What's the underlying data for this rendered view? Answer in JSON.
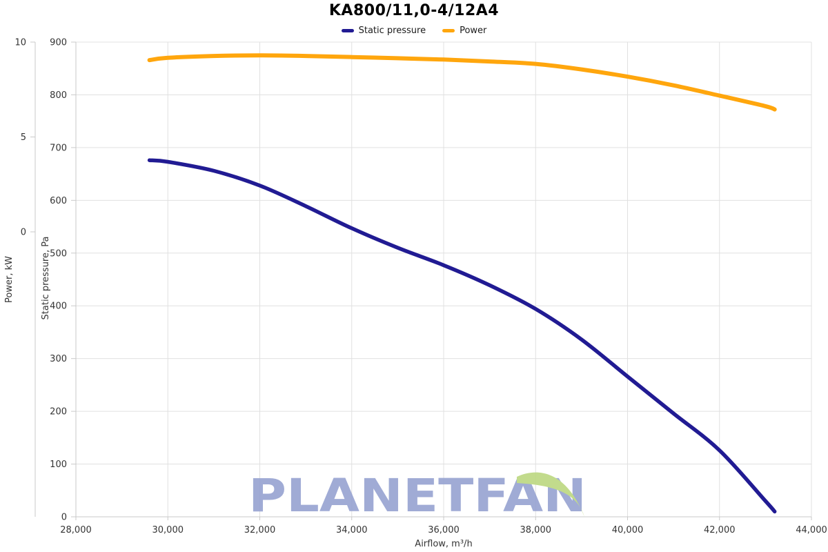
{
  "title": "KA800/11,0-4/12A4",
  "legend": {
    "items": [
      {
        "label": "Static pressure",
        "color": "#211b93"
      },
      {
        "label": "Power",
        "color": "#ffa60d"
      }
    ]
  },
  "watermark": {
    "text": "PLANETFAN",
    "text_color": "#98a4d2",
    "leaf_color": "#bdd983"
  },
  "chart_data": {
    "type": "line",
    "title": "KA800/11,0-4/12A4",
    "grid": true,
    "legend_position": "top-center",
    "x_axis": {
      "label": "Airflow, m³/h",
      "min": 28000,
      "max": 44000,
      "tick_values": [
        28000,
        30000,
        32000,
        34000,
        36000,
        38000,
        40000,
        42000,
        44000
      ],
      "tick_labels": [
        "28,000",
        "30,000",
        "32,000",
        "34,000",
        "36,000",
        "38,000",
        "40,000",
        "42,000",
        "44,000"
      ]
    },
    "pressure_axis": {
      "label": "Static pressure, Pa",
      "min": 0,
      "max": 900,
      "tick_values": [
        0,
        100,
        200,
        300,
        400,
        500,
        600,
        700,
        800,
        900
      ]
    },
    "power_axis": {
      "label": "Power, kW",
      "min": 0,
      "max": 10,
      "tick_values": [
        0,
        5,
        10
      ]
    },
    "series": [
      {
        "name": "Static pressure",
        "axis": "pressure",
        "units": "Pa",
        "color": "#211b93",
        "points": [
          [
            29600,
            676
          ],
          [
            30000,
            673
          ],
          [
            31000,
            656
          ],
          [
            32000,
            628
          ],
          [
            33000,
            589
          ],
          [
            34000,
            547
          ],
          [
            35000,
            510
          ],
          [
            36000,
            477
          ],
          [
            37000,
            439
          ],
          [
            38000,
            394
          ],
          [
            39000,
            336
          ],
          [
            40000,
            266
          ],
          [
            41000,
            196
          ],
          [
            42000,
            126
          ],
          [
            43000,
            30
          ],
          [
            43200,
            10
          ]
        ]
      },
      {
        "name": "Power",
        "axis": "power",
        "units": "kW",
        "color": "#ffa60d",
        "points": [
          [
            29600,
            9.05
          ],
          [
            30000,
            9.17
          ],
          [
            31000,
            9.27
          ],
          [
            32000,
            9.3
          ],
          [
            33000,
            9.27
          ],
          [
            34000,
            9.21
          ],
          [
            35000,
            9.15
          ],
          [
            36000,
            9.08
          ],
          [
            37000,
            8.98
          ],
          [
            38000,
            8.85
          ],
          [
            39000,
            8.56
          ],
          [
            40000,
            8.18
          ],
          [
            41000,
            7.72
          ],
          [
            42000,
            7.18
          ],
          [
            43000,
            6.62
          ],
          [
            43200,
            6.45
          ]
        ]
      }
    ]
  },
  "colors": {
    "grid": "#e0e0e0",
    "axis_line": "#c9c9c9",
    "tick_label": "#333333",
    "axis_name": "#333333"
  }
}
